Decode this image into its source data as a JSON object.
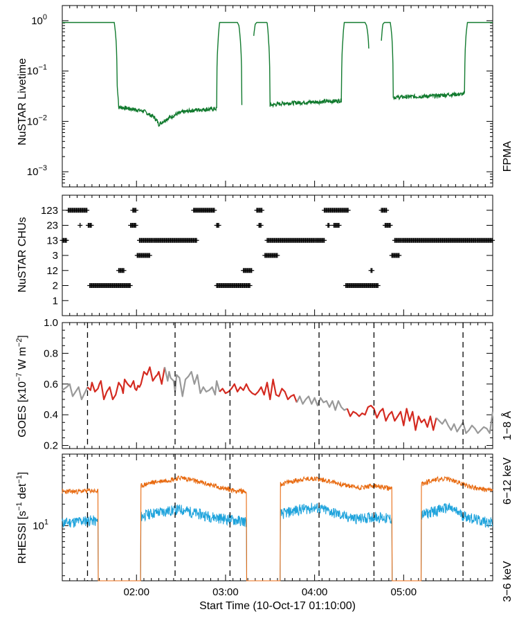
{
  "colors": {
    "fpma": "#117a2e",
    "goes_red": "#d42a20",
    "goes_gray": "#999999",
    "rhessi_low": "#e86a10",
    "rhessi_high": "#1ea3dc",
    "axis": "#000000"
  },
  "chart_data": [
    {
      "type": "line",
      "panel": "livetime",
      "ylabel": "NuSTAR Livetime",
      "yscale": "log",
      "ylim": [
        0.0005,
        2
      ],
      "yticks": [
        {
          "v": 1,
          "base": "10",
          "exp": "0"
        },
        {
          "v": 0.1,
          "base": "10",
          "exp": "−1"
        },
        {
          "v": 0.01,
          "base": "10",
          "exp": "−2"
        },
        {
          "v": 0.001,
          "base": "10",
          "exp": "−3"
        }
      ],
      "legend": {
        "label": "FPMA",
        "position": "right"
      },
      "series": [
        {
          "name": "FPMA",
          "segments": [
            [
              [
                0,
                0.92
              ],
              [
                35,
                0.92
              ],
              [
                36,
                0.5
              ],
              [
                37,
                0.05
              ],
              [
                38,
                0.019
              ],
              [
                40,
                0.019
              ],
              [
                45,
                0.018
              ],
              [
                50,
                0.017
              ],
              [
                55,
                0.016
              ],
              [
                58,
                0.014
              ],
              [
                62,
                0.012
              ],
              [
                64,
                0.01
              ],
              [
                65,
                0.0088
              ],
              [
                67,
                0.0095
              ],
              [
                70,
                0.011
              ],
              [
                75,
                0.013
              ],
              [
                80,
                0.015
              ],
              [
                90,
                0.017
              ],
              [
                100,
                0.0175
              ],
              [
                104,
                0.018
              ],
              [
                105,
                0.4
              ],
              [
                106,
                0.92
              ],
              [
                118,
                0.92
              ],
              [
                119,
                0.8
              ],
              [
                120,
                0.4
              ],
              [
                121,
                0.022
              ]
            ],
            [
              [
                129,
                0.5
              ],
              [
                130,
                0.85
              ],
              [
                131,
                0.92
              ],
              [
                138,
                0.92
              ]
            ],
            [
              [
                138,
                0.92
              ],
              [
                139,
                0.4
              ],
              [
                140,
                0.021
              ],
              [
                150,
                0.023
              ],
              [
                165,
                0.024
              ],
              [
                180,
                0.025
              ],
              [
                188,
                0.026
              ],
              [
                189,
                0.4
              ],
              [
                190,
                0.92
              ],
              [
                204,
                0.92
              ],
              [
                205,
                0.8
              ],
              [
                206,
                0.5
              ],
              [
                206.5,
                0.28
              ]
            ],
            [
              [
                215,
                0.4
              ],
              [
                216,
                0.85
              ],
              [
                217,
                0.92
              ],
              [
                221,
                0.92
              ],
              [
                222,
                0.5
              ],
              [
                223,
                0.03
              ],
              [
                235,
                0.031
              ],
              [
                250,
                0.032
              ],
              [
                260,
                0.034
              ],
              [
                271,
                0.035
              ],
              [
                272,
                0.5
              ],
              [
                273,
                0.92
              ],
              [
                290,
                0.92
              ]
            ]
          ]
        }
      ]
    },
    {
      "type": "scatter",
      "panel": "chus",
      "ylabel": "NuSTAR CHUs",
      "categories": [
        "1",
        "2",
        "12",
        "3",
        "13",
        "23",
        "123"
      ],
      "ylim": [
        0,
        8
      ],
      "series": [
        {
          "name": "123",
          "ranges": [
            [
              4,
              17
            ],
            [
              47.5,
              50
            ],
            [
              88.5,
              103
            ],
            [
              131,
              135
            ],
            [
              176.5,
              193
            ],
            [
              215,
              219
            ]
          ]
        },
        {
          "name": "23",
          "ranges": [
            [
              12,
              12
            ],
            [
              17.5,
              20
            ],
            [
              46,
              50
            ],
            [
              104,
              106
            ],
            [
              132.5,
              134
            ],
            [
              179,
              180
            ],
            [
              183,
              187
            ],
            [
              217.5,
              221
            ]
          ]
        },
        {
          "name": "13",
          "ranges": [
            [
              0,
              3
            ],
            [
              52,
              91
            ],
            [
              138,
              177
            ],
            [
              224,
              290
            ]
          ]
        },
        {
          "name": "3",
          "ranges": [
            [
              50.5,
              59
            ],
            [
              136.5,
              145
            ],
            [
              222,
              227.5
            ]
          ]
        },
        {
          "name": "12",
          "ranges": [
            [
              38,
              42
            ],
            [
              122,
              128
            ],
            [
              208,
              209
            ]
          ]
        },
        {
          "name": "2",
          "ranges": [
            [
              18.5,
              46
            ],
            [
              104,
              127
            ],
            [
              191,
              213
            ]
          ]
        }
      ]
    },
    {
      "type": "line",
      "panel": "goes",
      "ylabel": "GOES [x10⁻⁷ W m⁻²]",
      "ylabel_parts": {
        "pre": "GOES [x10",
        "exp1": "−7",
        "mid": " W m",
        "exp2": "−2",
        "post": "]"
      },
      "ylim": [
        0.18,
        1.0
      ],
      "yticks": [
        "0.2",
        "0.4",
        "0.6",
        "0.8",
        "1.0"
      ],
      "legend": {
        "label": "1−8 Å",
        "position": "right"
      },
      "gray_ranges": [
        [
          0,
          15
        ],
        [
          68,
          104
        ],
        [
          158,
          190
        ],
        [
          252,
          290
        ]
      ],
      "series": [
        {
          "name": "1-8 A",
          "x": [
            0,
            3,
            5,
            7,
            9,
            11,
            13,
            15,
            17,
            19,
            20,
            22,
            24,
            25,
            26,
            28,
            30,
            32,
            34,
            36,
            38,
            40,
            41,
            42,
            44,
            46,
            48,
            49,
            50,
            51,
            52,
            53,
            55,
            57,
            59,
            61,
            63,
            64,
            65,
            67,
            69,
            71,
            72,
            73,
            75,
            76,
            77,
            79,
            81,
            83,
            85,
            87,
            89,
            91,
            93,
            95,
            97,
            99,
            101,
            103,
            104,
            106,
            108,
            110,
            112,
            114,
            116,
            118,
            120,
            122,
            124,
            126,
            128,
            130,
            132,
            134,
            136,
            138,
            140,
            142,
            144,
            146,
            148,
            150,
            152,
            154,
            156,
            158,
            160,
            162,
            164,
            166,
            168,
            170,
            172,
            174,
            176,
            178,
            180,
            182,
            184,
            186,
            188,
            190,
            192,
            194,
            196,
            198,
            200,
            202,
            204,
            206,
            208,
            210,
            212,
            214,
            216,
            218,
            220,
            222,
            224,
            226,
            228,
            230,
            232,
            234,
            236,
            238,
            240,
            242,
            244,
            246,
            248,
            250,
            252,
            254,
            256,
            258,
            260,
            262,
            264,
            266,
            268,
            270,
            272,
            274,
            276,
            278,
            280,
            282,
            284,
            286,
            288,
            290
          ],
          "y": [
            0.56,
            0.58,
            0.6,
            0.52,
            0.55,
            0.58,
            0.5,
            0.54,
            0.58,
            0.56,
            0.61,
            0.55,
            0.57,
            0.6,
            0.62,
            0.5,
            0.55,
            0.58,
            0.5,
            0.53,
            0.61,
            0.58,
            0.54,
            0.63,
            0.6,
            0.58,
            0.62,
            0.57,
            0.56,
            0.59,
            0.58,
            0.6,
            0.68,
            0.66,
            0.71,
            0.62,
            0.65,
            0.66,
            0.68,
            0.6,
            0.71,
            0.62,
            0.68,
            0.64,
            0.62,
            0.55,
            0.66,
            0.64,
            0.52,
            0.63,
            0.65,
            0.68,
            0.6,
            0.66,
            0.54,
            0.58,
            0.55,
            0.56,
            0.58,
            0.53,
            0.62,
            0.55,
            0.57,
            0.54,
            0.55,
            0.57,
            0.6,
            0.55,
            0.58,
            0.56,
            0.6,
            0.56,
            0.54,
            0.53,
            0.55,
            0.58,
            0.53,
            0.61,
            0.5,
            0.63,
            0.53,
            0.52,
            0.57,
            0.55,
            0.5,
            0.52,
            0.53,
            0.48,
            0.52,
            0.47,
            0.5,
            0.52,
            0.47,
            0.51,
            0.46,
            0.51,
            0.48,
            0.49,
            0.45,
            0.49,
            0.43,
            0.49,
            0.45,
            0.43,
            0.44,
            0.39,
            0.42,
            0.41,
            0.39,
            0.41,
            0.4,
            0.45,
            0.46,
            0.44,
            0.38,
            0.42,
            0.44,
            0.36,
            0.4,
            0.42,
            0.36,
            0.39,
            0.42,
            0.33,
            0.44,
            0.36,
            0.42,
            0.3,
            0.39,
            0.35,
            0.37,
            0.32,
            0.39,
            0.3,
            0.38,
            0.36,
            0.34,
            0.37,
            0.33,
            0.3,
            0.34,
            0.29,
            0.32,
            0.35,
            0.28,
            0.3,
            0.33,
            0.31,
            0.28,
            0.3,
            0.32,
            0.31,
            0.28,
            0.42
          ]
        }
      ]
    },
    {
      "type": "line",
      "panel": "rhessi",
      "ylabel": "RHESSI [s⁻¹ det⁻¹]",
      "ylabel_parts": {
        "pre": "RHESSI [s",
        "exp1": "−1",
        "mid": " det",
        "exp2": "−1",
        "post": "]"
      },
      "yticks": [
        {
          "v": 10,
          "base": "10",
          "exp": "1"
        }
      ],
      "legend": [
        {
          "label": "6−12 keV",
          "position": "right-top"
        },
        {
          "label": "3−6 keV",
          "position": "right-bottom"
        }
      ],
      "attenuated": [
        [
          24,
          53
        ],
        [
          124,
          147
        ],
        [
          222,
          242
        ]
      ],
      "series": [
        {
          "name": "3-6 keV",
          "x": [
            0,
            10,
            20,
            23,
            53,
            60,
            70,
            80,
            90,
            100,
            110,
            116,
            124,
            147,
            160,
            170,
            180,
            190,
            200,
            210,
            221,
            242,
            250,
            260,
            270,
            280,
            290
          ],
          "y": [
            30,
            30,
            31,
            30,
            36,
            40,
            43,
            47,
            42,
            37,
            33,
            31,
            30,
            38,
            44,
            46,
            42,
            37,
            34,
            36,
            33,
            38,
            44,
            45,
            38,
            33,
            31
          ]
        },
        {
          "name": "6-12 keV",
          "x": [
            0,
            10,
            20,
            23,
            53,
            60,
            70,
            80,
            90,
            100,
            110,
            116,
            124,
            147,
            160,
            170,
            180,
            190,
            200,
            210,
            221,
            242,
            250,
            260,
            270,
            280,
            290
          ],
          "y": [
            11,
            11.5,
            12,
            11.5,
            13.5,
            15,
            16,
            17,
            15,
            13.5,
            12.5,
            12,
            11.5,
            14.5,
            17,
            18,
            16,
            13.5,
            12.5,
            13.5,
            12.5,
            14,
            16,
            18,
            14,
            12,
            11
          ]
        }
      ]
    },
    {
      "type": "axis",
      "xlabel": "Start Time (10-Oct-17 01:10:00)",
      "xlim_minutes": [
        0,
        290
      ],
      "xticks": [
        {
          "m": 50,
          "label": "02:00"
        },
        {
          "m": 110,
          "label": "03:00"
        },
        {
          "m": 170,
          "label": "04:00"
        },
        {
          "m": 230,
          "label": "05:00"
        }
      ],
      "vlines_minutes": [
        17,
        76,
        113,
        173,
        210,
        270
      ]
    }
  ]
}
